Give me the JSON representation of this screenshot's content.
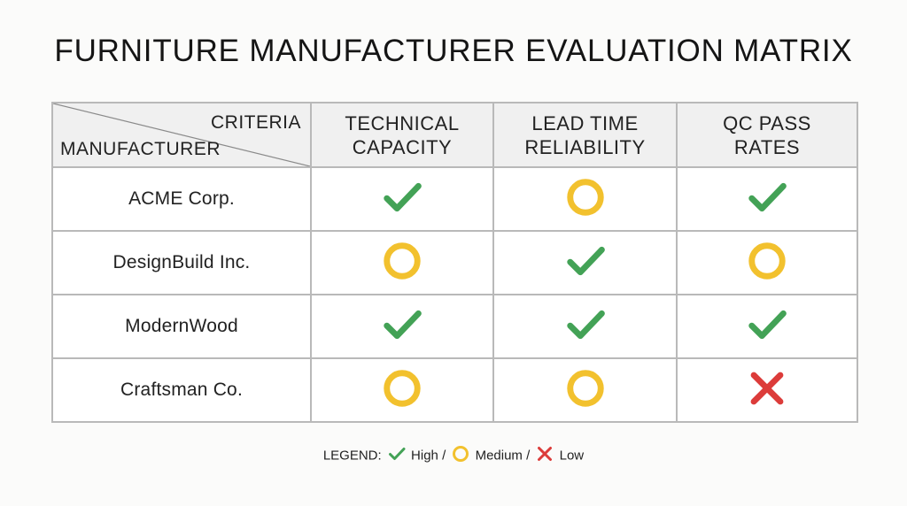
{
  "title": "FURNITURE MANUFACTURER EVALUATION MATRIX",
  "header": {
    "criteria_label": "CRITERIA",
    "manufacturer_label": "MANUFACTURER",
    "columns": [
      "TECHNICAL CAPACITY",
      "LEAD TIME RELIABILITY",
      "QC PASS RATES"
    ]
  },
  "rows": [
    {
      "name": "ACME Corp.",
      "ratings": [
        "high",
        "medium",
        "high"
      ]
    },
    {
      "name": "DesignBuild Inc.",
      "ratings": [
        "medium",
        "high",
        "medium"
      ]
    },
    {
      "name": "ModernWood",
      "ratings": [
        "high",
        "high",
        "high"
      ]
    },
    {
      "name": "Craftsman Co.",
      "ratings": [
        "medium",
        "medium",
        "low"
      ]
    }
  ],
  "legend": {
    "prefix": "LEGEND:",
    "items": [
      {
        "key": "high",
        "label": "High"
      },
      {
        "key": "medium",
        "label": "Medium"
      },
      {
        "key": "low",
        "label": "Low"
      }
    ],
    "separator": "/"
  },
  "icons": {
    "high": "check-icon",
    "medium": "circle-icon",
    "low": "x-icon"
  },
  "colors": {
    "high": "#43a256",
    "medium": "#f2c12e",
    "low": "#dc3c3a"
  }
}
